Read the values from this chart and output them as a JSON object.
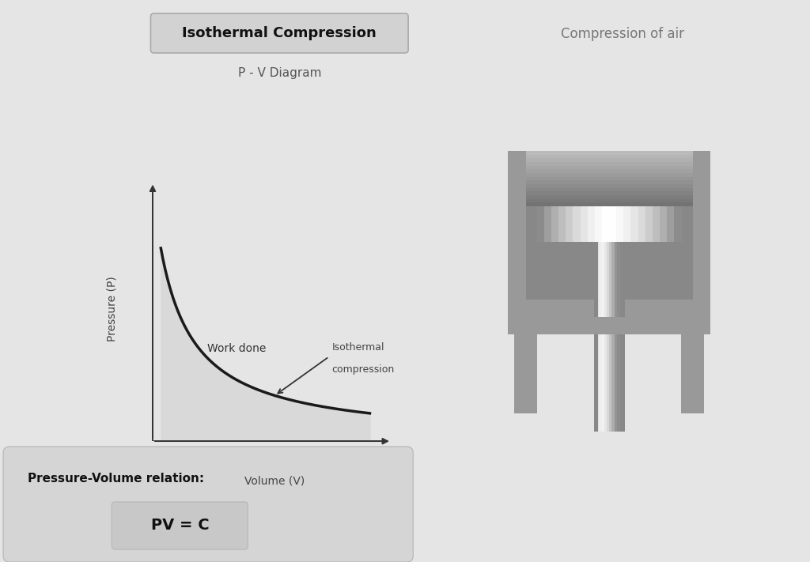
{
  "bg_color": "#e5e5e5",
  "panel_color": "#ebebeb",
  "divider_color": "#cccccc",
  "title_box_color": "#d2d2d2",
  "title_box_edge": "#aaaaaa",
  "title_text": "Isothermal Compression",
  "subtitle_text": "P - V Diagram",
  "right_title_text": "Compression of air",
  "pv_relation_label": "Pressure-Volume relation:",
  "pv_formula": "PV = C",
  "work_done_label": "Work done",
  "curve_label_line1": "Isothermal",
  "curve_label_line2": "compression",
  "pressure_label": "Pressure (P)",
  "volume_label": "Volume (V)",
  "curve_color": "#1a1a1a",
  "fill_color": "#d8d8d8",
  "fill_alpha": 0.85,
  "arrow_color": "#333333",
  "info_box_color": "#d5d5d5",
  "formula_box_color": "#c8c8c8"
}
